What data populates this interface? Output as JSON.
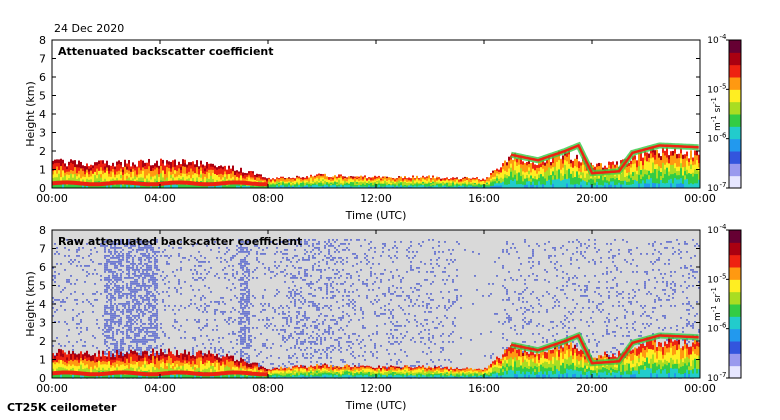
{
  "date": "24 Dec 2020",
  "instrument": "CT25K ceilometer",
  "chart_data": [
    {
      "type": "heatmap",
      "title": "Attenuated backscatter coefficient",
      "xlabel": "Time (UTC)",
      "ylabel": "Height (km)",
      "xlim_hours": [
        0,
        24
      ],
      "ylim_km": [
        0,
        8
      ],
      "xticks": [
        "00:00",
        "04:00",
        "08:00",
        "12:00",
        "16:00",
        "20:00",
        "00:00"
      ],
      "yticks": [
        "0",
        "1",
        "2",
        "3",
        "4",
        "5",
        "6",
        "7",
        "8"
      ],
      "colorbar": {
        "units_main": "m",
        "units_exp1": "-1",
        "units_mid": " sr",
        "units_exp2": "-1",
        "scale": "log",
        "range": [
          1e-07,
          0.0001
        ],
        "ticks": [
          {
            "base": "10",
            "exp": "-4",
            "value": 0.0001
          },
          {
            "base": "10",
            "exp": "-5",
            "value": 1e-05
          },
          {
            "base": "10",
            "exp": "-6",
            "value": 1e-06
          },
          {
            "base": "10",
            "exp": "-7",
            "value": 1e-07
          }
        ]
      },
      "boundary_layer_top_km": [
        [
          0,
          1.4
        ],
        [
          2,
          1.3
        ],
        [
          4,
          1.4
        ],
        [
          6,
          1.3
        ],
        [
          7,
          1.0
        ],
        [
          8,
          0.5
        ],
        [
          10,
          0.7
        ],
        [
          12,
          0.6
        ],
        [
          14,
          0.6
        ],
        [
          16,
          0.5
        ],
        [
          17,
          1.7
        ],
        [
          18,
          1.4
        ],
        [
          19,
          1.9
        ],
        [
          20,
          1.2
        ],
        [
          21,
          1.3
        ],
        [
          22,
          2.0
        ],
        [
          24,
          1.8
        ]
      ],
      "cloud_layer_km": [
        [
          17.0,
          1.8
        ],
        [
          18.0,
          1.5
        ],
        [
          19.0,
          2.0
        ],
        [
          19.5,
          2.3
        ],
        [
          20.0,
          0.8
        ],
        [
          21.0,
          0.9
        ],
        [
          21.5,
          1.9
        ],
        [
          22.5,
          2.3
        ],
        [
          24.0,
          2.2
        ]
      ],
      "background": "#ffffff"
    },
    {
      "type": "heatmap",
      "title": "Raw attenuated backscatter coefficient",
      "xlabel": "Time (UTC)",
      "ylabel": "Height (km)",
      "xlim_hours": [
        0,
        24
      ],
      "ylim_km": [
        0,
        8
      ],
      "xticks": [
        "00:00",
        "04:00",
        "08:00",
        "12:00",
        "16:00",
        "20:00",
        "00:00"
      ],
      "yticks": [
        "0",
        "1",
        "2",
        "3",
        "4",
        "5",
        "6",
        "7",
        "8"
      ],
      "colorbar": {
        "units_main": "m",
        "units_exp1": "-1",
        "units_mid": " sr",
        "units_exp2": "-1",
        "scale": "log",
        "range": [
          1e-07,
          0.0001
        ],
        "ticks": [
          {
            "base": "10",
            "exp": "-4",
            "value": 0.0001
          },
          {
            "base": "10",
            "exp": "-5",
            "value": 1e-05
          },
          {
            "base": "10",
            "exp": "-6",
            "value": 1e-06
          },
          {
            "base": "10",
            "exp": "-7",
            "value": 1e-07
          }
        ]
      },
      "boundary_layer_top_km": [
        [
          0,
          1.4
        ],
        [
          2,
          1.3
        ],
        [
          4,
          1.4
        ],
        [
          6,
          1.3
        ],
        [
          7,
          1.0
        ],
        [
          8,
          0.5
        ],
        [
          10,
          0.7
        ],
        [
          12,
          0.6
        ],
        [
          14,
          0.6
        ],
        [
          16,
          0.5
        ],
        [
          17,
          1.7
        ],
        [
          18,
          1.4
        ],
        [
          19,
          1.9
        ],
        [
          20,
          1.2
        ],
        [
          21,
          1.3
        ],
        [
          22,
          2.0
        ],
        [
          24,
          1.8
        ]
      ],
      "cloud_layer_km": [
        [
          17.0,
          1.8
        ],
        [
          18.0,
          1.5
        ],
        [
          19.0,
          2.0
        ],
        [
          19.5,
          2.3
        ],
        [
          20.0,
          0.8
        ],
        [
          21.0,
          0.9
        ],
        [
          21.5,
          1.9
        ],
        [
          22.5,
          2.3
        ],
        [
          24.0,
          2.2
        ]
      ],
      "noise_top_km": 7.5,
      "background": "#d9d9d9"
    }
  ],
  "colors": {
    "scale": [
      "#e6e6ff",
      "#9999ee",
      "#3355dd",
      "#2299ee",
      "#22cccc",
      "#33cc44",
      "#aadd22",
      "#ffee22",
      "#ff9911",
      "#ee2211",
      "#aa0011",
      "#660033"
    ],
    "noise": "#3344cc"
  }
}
